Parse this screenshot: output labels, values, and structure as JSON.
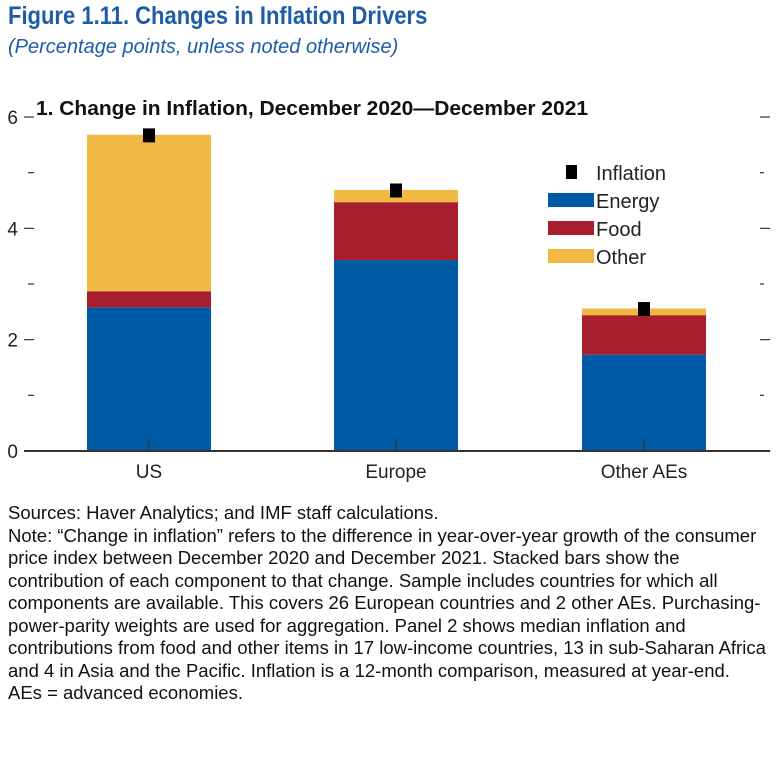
{
  "figure": {
    "title": "Figure 1.11.  Changes in Inflation Drivers",
    "subtitle": "(Percentage points, unless noted otherwise)"
  },
  "chart_data": {
    "type": "bar",
    "stacked": true,
    "title": "1. Change in Inflation, December 2020—December 2021",
    "xlabel": "",
    "ylabel": "",
    "categories": [
      "US",
      "Europe",
      "Other AEs"
    ],
    "ylim": [
      0,
      6
    ],
    "yticks": [
      "0",
      "2",
      "4",
      "6"
    ],
    "grid": false,
    "legend_position": "right",
    "series": [
      {
        "name": "Energy",
        "kind": "bar",
        "color": "#005ba6",
        "values": [
          2.58,
          3.43,
          1.73
        ]
      },
      {
        "name": "Food",
        "kind": "bar",
        "color": "#a81e2d",
        "values": [
          0.29,
          1.04,
          0.71
        ]
      },
      {
        "name": "Other",
        "kind": "bar",
        "color": "#f2b844",
        "values": [
          2.81,
          0.22,
          0.12
        ]
      },
      {
        "name": "Inflation",
        "kind": "marker",
        "color": "#000000",
        "values": [
          5.67,
          4.68,
          2.55
        ]
      }
    ]
  },
  "notes": {
    "sources": "Sources: Haver Analytics; and IMF staff calculations.",
    "note": "Note: “Change in inflation” refers to the difference in year-over-year growth of the consumer price index between December 2020 and December 2021. Stacked bars show the contribution of each component to that change. Sample includes countries for which all components are available. This covers 26 European countries and 2 other AEs. Purchasing-power-parity weights are used for aggregation. Panel 2 shows median inflation and contributions from food and other items in 17 low-income countries, 13 in sub-Saharan Africa and 4 in Asia and the Pacific. Inflation is a 12-month comparison, measured at year-end.",
    "abbrev": "AEs = advanced economies."
  }
}
